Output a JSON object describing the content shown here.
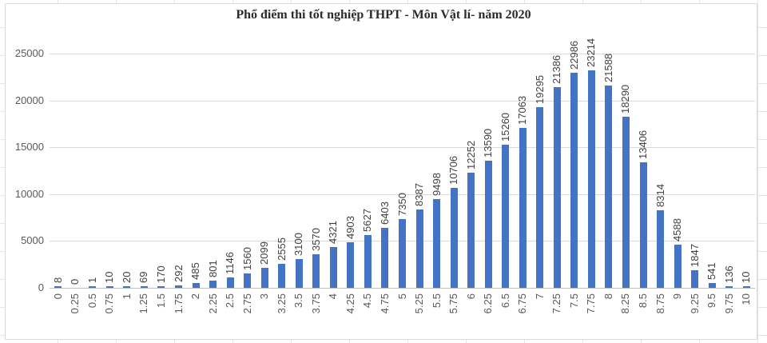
{
  "chart_data": {
    "type": "bar",
    "title": "Phổ điểm thi tốt nghiệp THPT - Môn Vật lí- năm 2020",
    "xlabel": "",
    "ylabel": "",
    "categories": [
      "0",
      "0.25",
      "0.5",
      "0.75",
      "1",
      "1.25",
      "1.5",
      "1.75",
      "2",
      "2.25",
      "2.5",
      "2.75",
      "3",
      "3.25",
      "3.5",
      "3.75",
      "4",
      "4.25",
      "4.5",
      "4.75",
      "5",
      "5.25",
      "5.5",
      "5.75",
      "6",
      "6.25",
      "6.5",
      "6.75",
      "7",
      "7.25",
      "7.5",
      "7.75",
      "8",
      "8.25",
      "8.5",
      "8.75",
      "9",
      "9.25",
      "9.5",
      "9.75",
      "10"
    ],
    "values": [
      8,
      0,
      1,
      10,
      20,
      69,
      170,
      292,
      485,
      801,
      1146,
      1560,
      2099,
      2555,
      3100,
      3570,
      4321,
      4903,
      5627,
      6403,
      7350,
      8387,
      9498,
      10706,
      12252,
      13590,
      15260,
      17063,
      19295,
      21386,
      22986,
      23214,
      21588,
      18290,
      13406,
      8314,
      4588,
      1847,
      541,
      136,
      10
    ],
    "y_ticks": [
      0,
      5000,
      10000,
      15000,
      20000,
      25000
    ],
    "ylim": [
      0,
      25000
    ],
    "grid": "horizontal",
    "legend": "none",
    "data_labels": "rotated-vertical",
    "category_labels": "rotated-vertical",
    "colors": {
      "bar": "#4472c4",
      "gridline": "#d9d9d9",
      "axis_line": "#bfbfbf",
      "axis_label": "#595959",
      "data_label": "#404040",
      "title": "#2b2b2b"
    }
  }
}
